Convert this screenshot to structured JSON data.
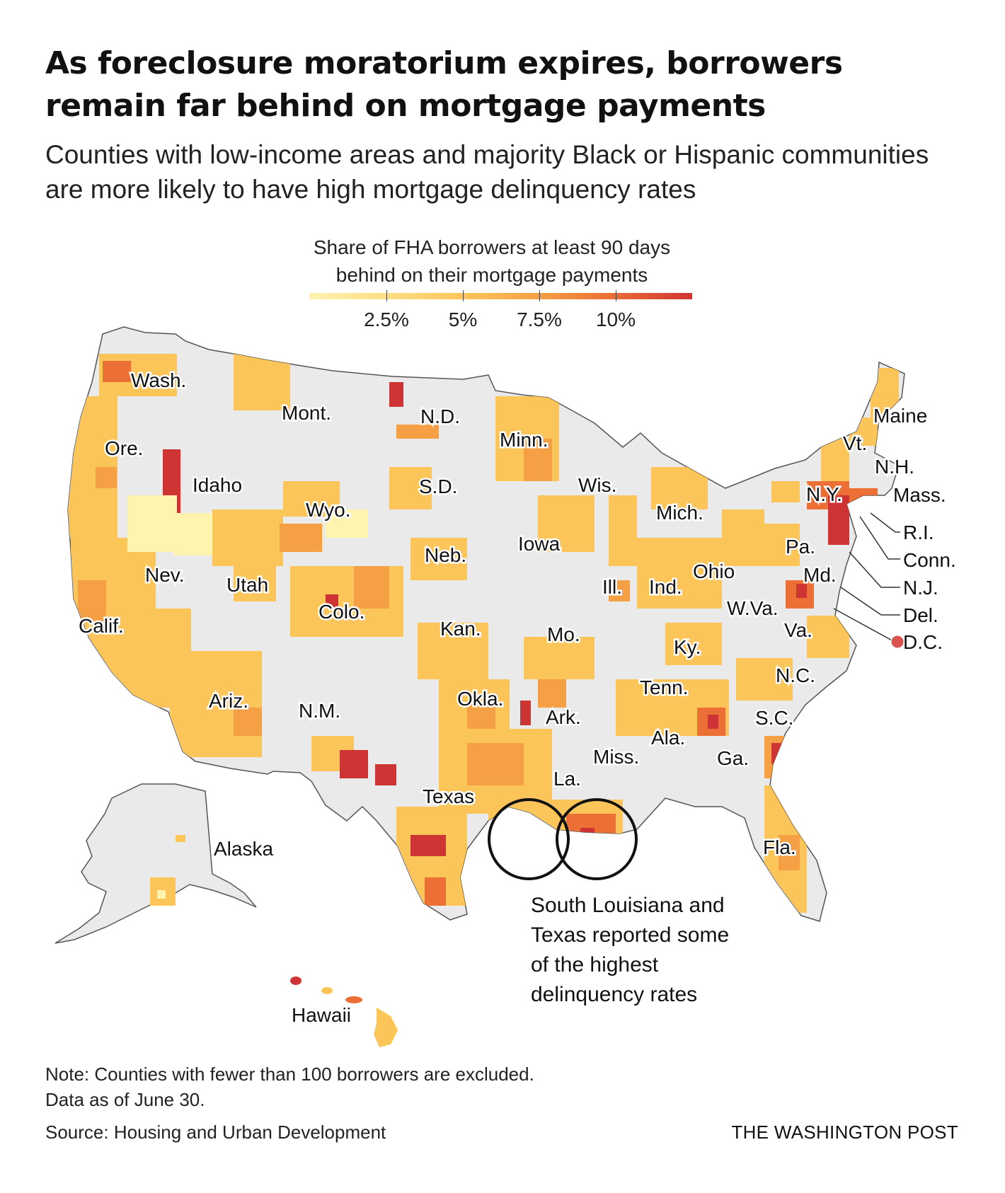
{
  "header": {
    "title": "As foreclosure moratorium expires, borrowers remain far behind on mortgage payments",
    "subtitle": "Counties with low-income areas and majority Black or Hispanic communities are more likely to have high mortgage delinquency rates"
  },
  "legend": {
    "title": "Share of FHA borrowers at least 90 days behind on their mortgage payments",
    "ticks": [
      {
        "label": "2.5%",
        "value": 2.5
      },
      {
        "label": "5%",
        "value": 5
      },
      {
        "label": "7.5%",
        "value": 7.5
      },
      {
        "label": "10%",
        "value": 10
      }
    ],
    "domain": [
      0,
      12.5
    ],
    "colors": [
      "#fff3b0",
      "#ffe08a",
      "#fbc55a",
      "#f6a045",
      "#ec7036",
      "#cf3434"
    ]
  },
  "map": {
    "land_color": "#eaeaea",
    "border_color": "#555555",
    "state_labels": {
      "wa": "Wash.",
      "or": "Ore.",
      "ca": "Calif.",
      "nv": "Nev.",
      "id": "Idaho",
      "mt": "Mont.",
      "wy": "Wyo.",
      "ut": "Utah",
      "co": "Colo.",
      "az": "Ariz.",
      "nm": "N.M.",
      "nd": "N.D.",
      "sd": "S.D.",
      "ne": "Neb.",
      "ks": "Kan.",
      "ok": "Okla.",
      "tx": "Texas",
      "mn": "Minn.",
      "ia": "Iowa",
      "mo": "Mo.",
      "ar": "Ark.",
      "la": "La.",
      "wi": "Wis.",
      "il": "Ill.",
      "mi": "Mich.",
      "in": "Ind.",
      "oh": "Ohio",
      "ky": "Ky.",
      "tn": "Tenn.",
      "ms": "Miss.",
      "al": "Ala.",
      "ga": "Ga.",
      "fl": "Fla.",
      "sc": "S.C.",
      "nc": "N.C.",
      "va": "Va.",
      "wv": "W.Va.",
      "pa": "Pa.",
      "ny": "N.Y.",
      "md": "Md.",
      "vt": "Vt.",
      "me": "Maine",
      "nh": "N.H.",
      "ma": "Mass.",
      "ri": "R.I.",
      "ct": "Conn.",
      "nj": "N.J.",
      "de": "Del.",
      "dc": "D.C.",
      "ak": "Alaska",
      "hi": "Hawaii"
    },
    "annotation": "South Louisiana and Texas reported some of the highest delinquency rates",
    "annotation_lines": [
      "South Louisiana and",
      "Texas reported some",
      "of the highest",
      "delinquency rates"
    ]
  },
  "footer": {
    "note_line1": "Note: Counties with fewer than 100 borrowers are excluded.",
    "note_line2": "Data as of June 30.",
    "source": "Source: Housing and Urban Development",
    "credit": "THE WASHINGTON POST"
  }
}
